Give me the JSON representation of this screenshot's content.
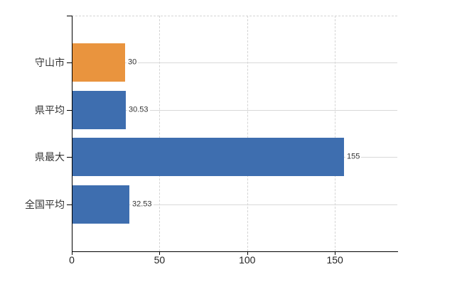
{
  "chart_data": {
    "type": "bar",
    "orientation": "horizontal",
    "title": "",
    "xlabel": "",
    "ylabel": "",
    "categories": [
      "守山市",
      "県平均",
      "県最大",
      "全国平均"
    ],
    "values": [
      30,
      30.53,
      155,
      32.53
    ],
    "value_labels": [
      "30",
      "30.53",
      "155",
      "32.53"
    ],
    "bar_colors": [
      "#E9943E",
      "#3E6EAF",
      "#3E6EAF",
      "#3E6EAF"
    ],
    "x_ticks": [
      0,
      50,
      100,
      150
    ],
    "x_tick_labels": [
      "0",
      "50",
      "100",
      "150"
    ],
    "xlim": [
      0,
      185.6
    ],
    "legend": "none",
    "grid": {
      "vertical": "dashed at each x tick",
      "horizontal": "solid at each category center",
      "top_border": "dashed"
    }
  },
  "colors": {
    "highlight_bar": "#E9943E",
    "default_bar": "#3E6EAF",
    "gridline_solid": "#D8D8D8",
    "gridline_dashed": "#D4D4D4",
    "axis": "#000000",
    "text": "#333333",
    "background": "#FFFFFF"
  }
}
